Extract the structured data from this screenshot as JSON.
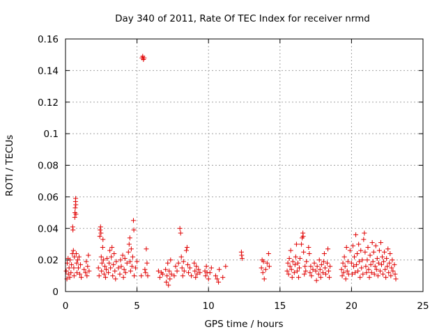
{
  "chart_data": {
    "type": "scatter",
    "title": "Day 340 of 2011, Rate Of TEC Index for receiver nrmd",
    "xlabel": "GPS time / hours",
    "ylabel": "ROTI / TECUs",
    "xlim": [
      0,
      25
    ],
    "ylim": [
      0,
      0.16
    ],
    "xticks": [
      0,
      5,
      10,
      15,
      20,
      25
    ],
    "yticks": [
      0,
      0.02,
      0.04,
      0.06,
      0.08,
      0.1,
      0.12,
      0.14,
      0.16
    ],
    "xtick_labels": [
      "0",
      "5",
      "10",
      "15",
      "20",
      "25"
    ],
    "ytick_labels": [
      "0",
      "0.02",
      "0.04",
      "0.06",
      "0.08",
      "0.1",
      "0.12",
      "0.14",
      "0.16"
    ],
    "grid": true,
    "marker": "+",
    "marker_color": "#e00000",
    "series": [
      {
        "points": [
          [
            0.05,
            0.013
          ],
          [
            0.1,
            0.008
          ],
          [
            0.12,
            0.018
          ],
          [
            0.18,
            0.021
          ],
          [
            0.2,
            0.011
          ],
          [
            0.25,
            0.015
          ],
          [
            0.3,
            0.009
          ],
          [
            0.32,
            0.02
          ],
          [
            0.38,
            0.012
          ],
          [
            0.42,
            0.017
          ],
          [
            0.48,
            0.024
          ],
          [
            0.5,
            0.041
          ],
          [
            0.52,
            0.039
          ],
          [
            0.55,
            0.026
          ],
          [
            0.58,
            0.015
          ],
          [
            0.6,
            0.01
          ],
          [
            0.62,
            0.022
          ],
          [
            0.65,
            0.047
          ],
          [
            0.66,
            0.05
          ],
          [
            0.68,
            0.053
          ],
          [
            0.7,
            0.057
          ],
          [
            0.71,
            0.059
          ],
          [
            0.72,
            0.055
          ],
          [
            0.73,
            0.049
          ],
          [
            0.75,
            0.024
          ],
          [
            0.78,
            0.018
          ],
          [
            0.8,
            0.012
          ],
          [
            0.85,
            0.02
          ],
          [
            0.9,
            0.015
          ],
          [
            0.95,
            0.022
          ],
          [
            1.0,
            0.011
          ],
          [
            1.05,
            0.017
          ],
          [
            1.1,
            0.009
          ],
          [
            1.3,
            0.014
          ],
          [
            1.4,
            0.012
          ],
          [
            1.45,
            0.019
          ],
          [
            1.5,
            0.01
          ],
          [
            1.55,
            0.016
          ],
          [
            1.6,
            0.023
          ],
          [
            1.65,
            0.013
          ],
          [
            2.3,
            0.015
          ],
          [
            2.35,
            0.01
          ],
          [
            2.4,
            0.035
          ],
          [
            2.42,
            0.039
          ],
          [
            2.45,
            0.041
          ],
          [
            2.48,
            0.037
          ],
          [
            2.5,
            0.022
          ],
          [
            2.52,
            0.013
          ],
          [
            2.55,
            0.018
          ],
          [
            2.6,
            0.028
          ],
          [
            2.62,
            0.033
          ],
          [
            2.65,
            0.02
          ],
          [
            2.7,
            0.011
          ],
          [
            2.75,
            0.016
          ],
          [
            2.8,
            0.009
          ],
          [
            2.85,
            0.014
          ],
          [
            2.9,
            0.021
          ],
          [
            3.0,
            0.012
          ],
          [
            3.05,
            0.018
          ],
          [
            3.1,
            0.026
          ],
          [
            3.15,
            0.015
          ],
          [
            3.2,
            0.022
          ],
          [
            3.25,
            0.028
          ],
          [
            3.3,
            0.01
          ],
          [
            3.35,
            0.017
          ],
          [
            3.4,
            0.024
          ],
          [
            3.45,
            0.013
          ],
          [
            3.5,
            0.008
          ],
          [
            3.55,
            0.019
          ],
          [
            3.7,
            0.015
          ],
          [
            3.8,
            0.011
          ],
          [
            3.85,
            0.02
          ],
          [
            3.9,
            0.016
          ],
          [
            4.0,
            0.023
          ],
          [
            4.05,
            0.009
          ],
          [
            4.1,
            0.014
          ],
          [
            4.15,
            0.021
          ],
          [
            4.2,
            0.012
          ],
          [
            4.3,
            0.018
          ],
          [
            4.4,
            0.025
          ],
          [
            4.45,
            0.03
          ],
          [
            4.5,
            0.034
          ],
          [
            4.52,
            0.019
          ],
          [
            4.55,
            0.013
          ],
          [
            4.6,
            0.027
          ],
          [
            4.65,
            0.016
          ],
          [
            4.7,
            0.022
          ],
          [
            4.75,
            0.045
          ],
          [
            4.78,
            0.039
          ],
          [
            4.8,
            0.01
          ],
          [
            4.9,
            0.015
          ],
          [
            5.0,
            0.019
          ],
          [
            5.3,
            0.01
          ],
          [
            5.35,
            0.148
          ],
          [
            5.4,
            0.149
          ],
          [
            5.45,
            0.147
          ],
          [
            5.5,
            0.148
          ],
          [
            5.55,
            0.014
          ],
          [
            5.6,
            0.012
          ],
          [
            5.65,
            0.027
          ],
          [
            5.7,
            0.018
          ],
          [
            5.75,
            0.01
          ],
          [
            6.5,
            0.013
          ],
          [
            6.6,
            0.009
          ],
          [
            6.7,
            0.012
          ],
          [
            6.8,
            0.011
          ],
          [
            7.0,
            0.014
          ],
          [
            7.05,
            0.006
          ],
          [
            7.1,
            0.01
          ],
          [
            7.15,
            0.018
          ],
          [
            7.2,
            0.004
          ],
          [
            7.25,
            0.013
          ],
          [
            7.3,
            0.008
          ],
          [
            7.35,
            0.02
          ],
          [
            7.4,
            0.011
          ],
          [
            7.6,
            0.01
          ],
          [
            7.7,
            0.016
          ],
          [
            7.8,
            0.013
          ],
          [
            7.9,
            0.018
          ],
          [
            8.0,
            0.04
          ],
          [
            8.05,
            0.037
          ],
          [
            8.1,
            0.022
          ],
          [
            8.15,
            0.015
          ],
          [
            8.2,
            0.01
          ],
          [
            8.25,
            0.019
          ],
          [
            8.3,
            0.013
          ],
          [
            8.45,
            0.026
          ],
          [
            8.5,
            0.028
          ],
          [
            8.55,
            0.017
          ],
          [
            8.6,
            0.012
          ],
          [
            8.7,
            0.015
          ],
          [
            8.8,
            0.01
          ],
          [
            9.0,
            0.018
          ],
          [
            9.05,
            0.013
          ],
          [
            9.1,
            0.009
          ],
          [
            9.15,
            0.016
          ],
          [
            9.2,
            0.011
          ],
          [
            9.3,
            0.014
          ],
          [
            9.4,
            0.012
          ],
          [
            9.75,
            0.013
          ],
          [
            9.8,
            0.01
          ],
          [
            9.85,
            0.016
          ],
          [
            9.9,
            0.012
          ],
          [
            10.0,
            0.008
          ],
          [
            10.1,
            0.012
          ],
          [
            10.2,
            0.015
          ],
          [
            10.5,
            0.01
          ],
          [
            10.6,
            0.008
          ],
          [
            10.7,
            0.006
          ],
          [
            10.75,
            0.014
          ],
          [
            11.0,
            0.009
          ],
          [
            11.2,
            0.016
          ],
          [
            12.3,
            0.025
          ],
          [
            12.32,
            0.023
          ],
          [
            12.35,
            0.021
          ],
          [
            13.7,
            0.015
          ],
          [
            13.75,
            0.02
          ],
          [
            13.8,
            0.012
          ],
          [
            13.85,
            0.019
          ],
          [
            13.9,
            0.008
          ],
          [
            14.0,
            0.014
          ],
          [
            14.1,
            0.018
          ],
          [
            14.2,
            0.024
          ],
          [
            14.25,
            0.016
          ],
          [
            15.5,
            0.013
          ],
          [
            15.55,
            0.018
          ],
          [
            15.6,
            0.011
          ],
          [
            15.65,
            0.021
          ],
          [
            15.7,
            0.016
          ],
          [
            15.75,
            0.026
          ],
          [
            15.8,
            0.014
          ],
          [
            15.85,
            0.009
          ],
          [
            15.9,
            0.019
          ],
          [
            16.0,
            0.012
          ],
          [
            16.05,
            0.017
          ],
          [
            16.1,
            0.022
          ],
          [
            16.15,
            0.03
          ],
          [
            16.2,
            0.013
          ],
          [
            16.25,
            0.018
          ],
          [
            16.3,
            0.009
          ],
          [
            16.35,
            0.015
          ],
          [
            16.4,
            0.021
          ],
          [
            16.5,
            0.03
          ],
          [
            16.55,
            0.034
          ],
          [
            16.6,
            0.037
          ],
          [
            16.62,
            0.035
          ],
          [
            16.65,
            0.025
          ],
          [
            16.7,
            0.011
          ],
          [
            16.75,
            0.016
          ],
          [
            16.8,
            0.013
          ],
          [
            16.85,
            0.019
          ],
          [
            17.0,
            0.028
          ],
          [
            17.05,
            0.024
          ],
          [
            17.1,
            0.012
          ],
          [
            17.15,
            0.016
          ],
          [
            17.2,
            0.01
          ],
          [
            17.3,
            0.014
          ],
          [
            17.4,
            0.018
          ],
          [
            17.5,
            0.013
          ],
          [
            17.55,
            0.007
          ],
          [
            17.6,
            0.016
          ],
          [
            17.7,
            0.011
          ],
          [
            17.75,
            0.02
          ],
          [
            17.8,
            0.014
          ],
          [
            17.85,
            0.009
          ],
          [
            17.9,
            0.017
          ],
          [
            18.0,
            0.012
          ],
          [
            18.05,
            0.019
          ],
          [
            18.1,
            0.024
          ],
          [
            18.15,
            0.015
          ],
          [
            18.2,
            0.011
          ],
          [
            18.3,
            0.018
          ],
          [
            18.35,
            0.027
          ],
          [
            18.4,
            0.013
          ],
          [
            18.45,
            0.009
          ],
          [
            18.5,
            0.016
          ],
          [
            19.3,
            0.014
          ],
          [
            19.35,
            0.01
          ],
          [
            19.4,
            0.018
          ],
          [
            19.45,
            0.012
          ],
          [
            19.5,
            0.022
          ],
          [
            19.55,
            0.016
          ],
          [
            19.6,
            0.008
          ],
          [
            19.65,
            0.028
          ],
          [
            19.7,
            0.013
          ],
          [
            19.75,
            0.019
          ],
          [
            19.8,
            0.011
          ],
          [
            19.9,
            0.026
          ],
          [
            20.0,
            0.018
          ],
          [
            20.05,
            0.011
          ],
          [
            20.1,
            0.029
          ],
          [
            20.15,
            0.016
          ],
          [
            20.2,
            0.022
          ],
          [
            20.25,
            0.012
          ],
          [
            20.3,
            0.036
          ],
          [
            20.35,
            0.017
          ],
          [
            20.4,
            0.024
          ],
          [
            20.45,
            0.013
          ],
          [
            20.5,
            0.03
          ],
          [
            20.55,
            0.019
          ],
          [
            20.6,
            0.009
          ],
          [
            20.65,
            0.026
          ],
          [
            20.7,
            0.015
          ],
          [
            20.75,
            0.02
          ],
          [
            20.8,
            0.011
          ],
          [
            20.85,
            0.033
          ],
          [
            20.9,
            0.037
          ],
          [
            20.95,
            0.025
          ],
          [
            21.0,
            0.016
          ],
          [
            21.05,
            0.012
          ],
          [
            21.1,
            0.02
          ],
          [
            21.15,
            0.028
          ],
          [
            21.2,
            0.014
          ],
          [
            21.25,
            0.009
          ],
          [
            21.3,
            0.023
          ],
          [
            21.35,
            0.017
          ],
          [
            21.4,
            0.012
          ],
          [
            21.45,
            0.031
          ],
          [
            21.5,
            0.019
          ],
          [
            21.55,
            0.025
          ],
          [
            21.6,
            0.011
          ],
          [
            21.65,
            0.016
          ],
          [
            21.7,
            0.029
          ],
          [
            21.75,
            0.014
          ],
          [
            21.8,
            0.021
          ],
          [
            21.85,
            0.01
          ],
          [
            21.9,
            0.018
          ],
          [
            21.95,
            0.026
          ],
          [
            22.0,
            0.013
          ],
          [
            22.05,
            0.031
          ],
          [
            22.1,
            0.017
          ],
          [
            22.15,
            0.022
          ],
          [
            22.2,
            0.011
          ],
          [
            22.25,
            0.019
          ],
          [
            22.3,
            0.025
          ],
          [
            22.35,
            0.014
          ],
          [
            22.4,
            0.009
          ],
          [
            22.45,
            0.021
          ],
          [
            22.5,
            0.016
          ],
          [
            22.55,
            0.027
          ],
          [
            22.6,
            0.012
          ],
          [
            22.65,
            0.018
          ],
          [
            22.7,
            0.024
          ],
          [
            22.75,
            0.01
          ],
          [
            22.8,
            0.015
          ],
          [
            22.85,
            0.02
          ],
          [
            22.9,
            0.013
          ],
          [
            23.0,
            0.017
          ],
          [
            23.05,
            0.011
          ],
          [
            23.1,
            0.008
          ]
        ]
      }
    ]
  }
}
